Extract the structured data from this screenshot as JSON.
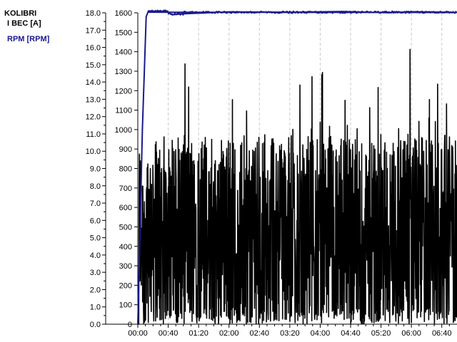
{
  "legend": {
    "device": "KOLIBRI",
    "series1": "I BEC [A]",
    "series2": "RPM [RPM]"
  },
  "colors": {
    "current": "#000000",
    "rpm": "#1a1a8c",
    "grid": "#c8c8c8"
  },
  "chart_data": {
    "type": "line",
    "x_unit": "mm:ss",
    "x_ticks": [
      "00:00",
      "00:40",
      "01:20",
      "02:00",
      "02:40",
      "03:20",
      "04:00",
      "04:40",
      "05:20",
      "06:00",
      "06:40"
    ],
    "x_range_seconds": [
      0,
      420
    ],
    "y_left": {
      "label": "I BEC [A]",
      "range": [
        0,
        18
      ],
      "ticks": [
        "0.0",
        "1.0",
        "2.0",
        "3.0",
        "4.0",
        "5.0",
        "6.0",
        "7.0",
        "8.0",
        "9.0",
        "10.0",
        "11.0",
        "12.0",
        "13.0",
        "14.0",
        "15.0",
        "16.0",
        "17.0",
        "18.0"
      ]
    },
    "y_right": {
      "label": "RPM [RPM]",
      "range": [
        0,
        1600
      ],
      "ticks": [
        "0",
        "100",
        "200",
        "300",
        "400",
        "500",
        "600",
        "700",
        "800",
        "900",
        "1000",
        "1100",
        "1200",
        "1300",
        "1400",
        "1500",
        "1600"
      ]
    },
    "grid": "vertical dashed",
    "series": [
      {
        "name": "I BEC [A]",
        "axis": "left",
        "description_values": "noisy current 0–16 A",
        "min": 0,
        "max": 16.0
      },
      {
        "name": "RPM [RPM]",
        "axis": "right",
        "points": [
          [
            0,
            0
          ],
          [
            6,
            1000
          ],
          [
            11,
            1580
          ],
          [
            14,
            1610
          ],
          [
            40,
            1605
          ],
          [
            45,
            1590
          ],
          [
            60,
            1595
          ],
          [
            120,
            1605
          ],
          [
            200,
            1603
          ],
          [
            270,
            1607
          ],
          [
            330,
            1600
          ],
          [
            360,
            1606
          ],
          [
            420,
            1602
          ]
        ]
      }
    ]
  }
}
